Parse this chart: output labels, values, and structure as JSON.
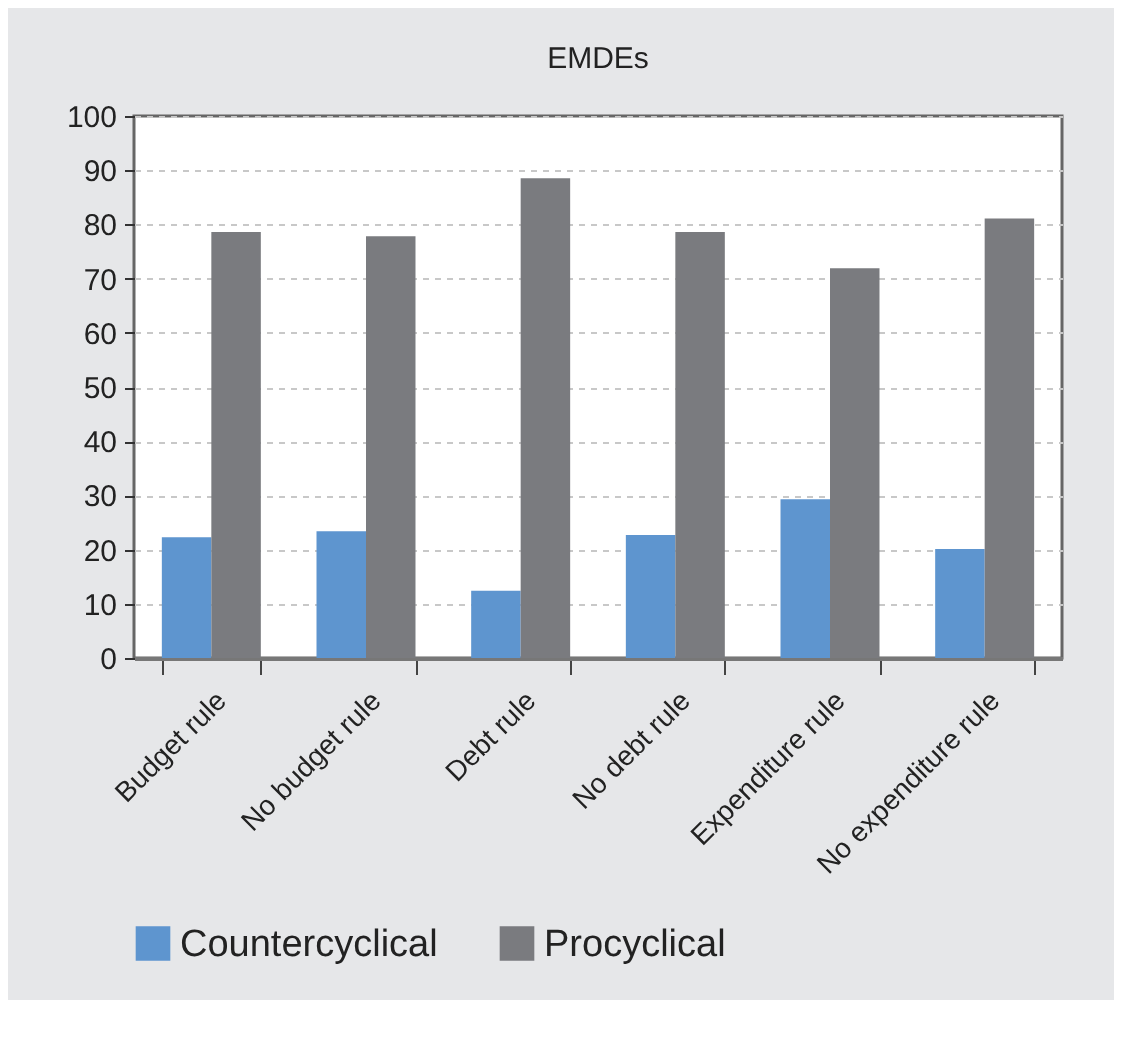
{
  "chart_data": {
    "type": "bar",
    "title": "EMDEs",
    "categories": [
      "Budget rule",
      "No budget rule",
      "Debt rule",
      "No debt rule",
      "Expenditure rule",
      "No expenditure rule"
    ],
    "series": [
      {
        "name": "Countercyclical",
        "color": "#5e95cf",
        "values": [
          22.3,
          23.4,
          12.4,
          22.7,
          29.3,
          20.1
        ]
      },
      {
        "name": "Procyclical",
        "color": "#7a7b7f",
        "values": [
          78.6,
          77.8,
          88.5,
          78.6,
          71.9,
          81.1
        ]
      }
    ],
    "ylim": [
      0,
      100
    ],
    "yticks": [
      0,
      10,
      20,
      30,
      40,
      50,
      60,
      70,
      80,
      90,
      100
    ],
    "grid": "y",
    "legend": "bottom"
  }
}
